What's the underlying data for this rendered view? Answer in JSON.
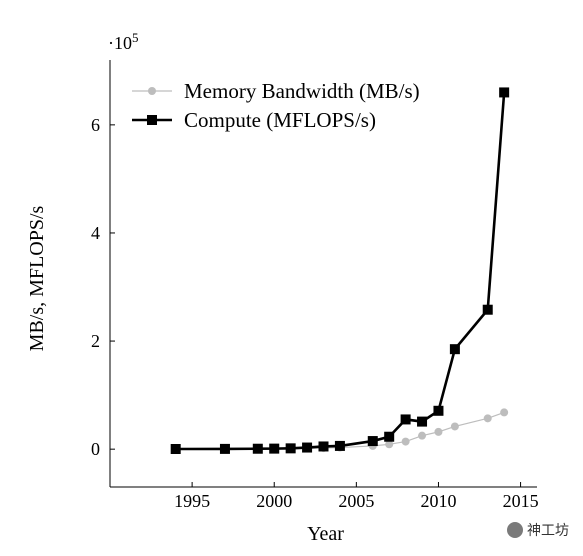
{
  "chart_data": {
    "type": "line",
    "xlabel": "Year",
    "ylabel": "MB/s, MFLOPS/s",
    "y_multiplier_label": "·10",
    "y_multiplier_exponent": "5",
    "xlim": [
      1990,
      2016
    ],
    "ylim": [
      -70000,
      720000
    ],
    "x_ticks": [
      1995,
      2000,
      2005,
      2010,
      2015
    ],
    "y_ticks": [
      0,
      200000,
      400000,
      600000
    ],
    "y_tick_labels": [
      "0",
      "2",
      "4",
      "6"
    ],
    "legend_position": "top-left",
    "series": [
      {
        "name": "Memory Bandwidth (MB/s)",
        "color": "#bdbdbd",
        "marker": "circle",
        "x": [
          1994,
          1997,
          1999,
          2000,
          2001,
          2002,
          2003,
          2004,
          2006,
          2007,
          2008,
          2009,
          2010,
          2011,
          2013,
          2014
        ],
        "y": [
          200,
          300,
          500,
          700,
          1000,
          1500,
          2000,
          3000,
          6000,
          9000,
          14000,
          25000,
          32000,
          42000,
          57000,
          68000
        ]
      },
      {
        "name": "Compute (MFLOPS/s)",
        "color": "#000000",
        "marker": "square",
        "x": [
          1994,
          1997,
          1999,
          2000,
          2001,
          2002,
          2003,
          2004,
          2006,
          2007,
          2008,
          2009,
          2010,
          2011,
          2013,
          2014
        ],
        "y": [
          300,
          500,
          800,
          1000,
          1500,
          3000,
          5000,
          6000,
          15000,
          23000,
          55000,
          51000,
          71000,
          185000,
          258000,
          660000
        ]
      }
    ]
  },
  "watermark": {
    "text": "神工坊"
  }
}
